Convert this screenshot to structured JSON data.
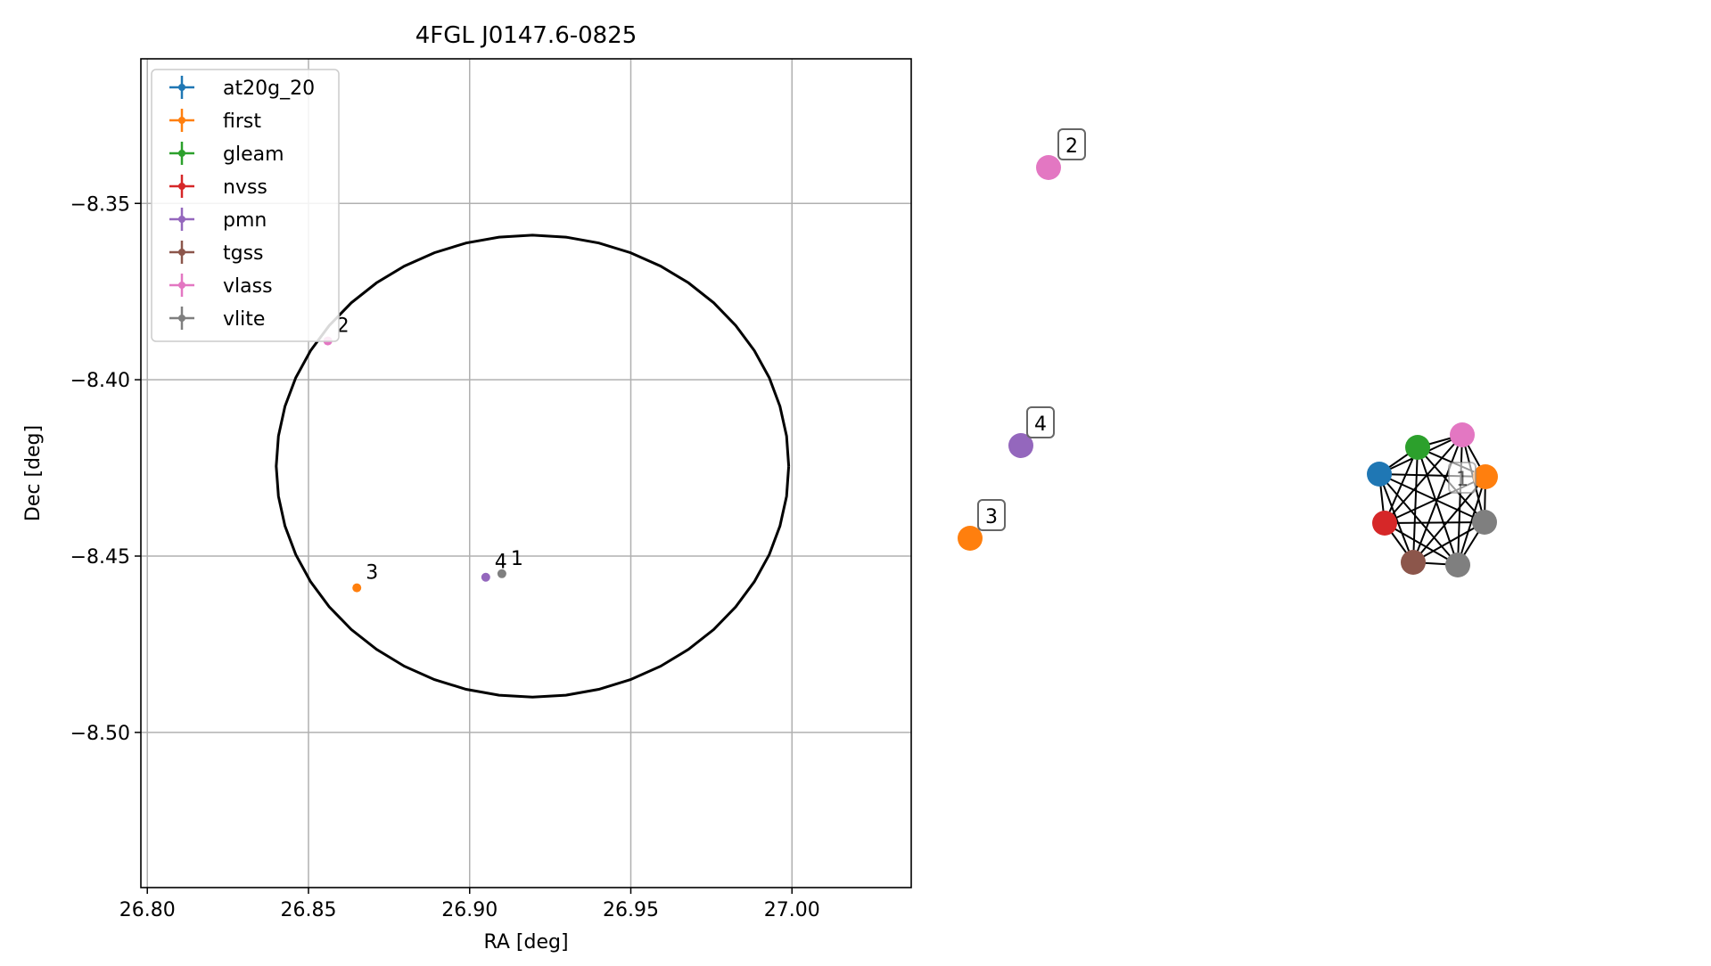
{
  "chart_data": [
    {
      "type": "scatter",
      "title": "4FGL J0147.6-0825",
      "xlabel": "RA [deg]",
      "ylabel": "Dec [deg]",
      "xlim": [
        26.798,
        27.037
      ],
      "ylim": [
        -8.544,
        -8.309
      ],
      "x_ticks": [
        26.8,
        26.85,
        26.9,
        26.95,
        27.0
      ],
      "x_tick_labels": [
        "26.80",
        "26.85",
        "26.90",
        "26.95",
        "27.00"
      ],
      "y_ticks": [
        -8.35,
        -8.4,
        -8.45,
        -8.5
      ],
      "y_tick_labels": [
        "−8.35",
        "−8.40",
        "−8.45",
        "−8.50"
      ],
      "grid": true,
      "legend_position": "top-left",
      "legend": [
        {
          "name": "at20g_20",
          "color": "#1f77b4"
        },
        {
          "name": "first",
          "color": "#ff7f0e"
        },
        {
          "name": "gleam",
          "color": "#2ca02c"
        },
        {
          "name": "nvss",
          "color": "#d62728"
        },
        {
          "name": "pmn",
          "color": "#9467bd"
        },
        {
          "name": "tgss",
          "color": "#8c564b"
        },
        {
          "name": "vlass",
          "color": "#e377c2"
        },
        {
          "name": "vlite",
          "color": "#7f7f7f"
        }
      ],
      "points": [
        {
          "label": "2",
          "x": 26.856,
          "y": -8.389,
          "color": "#e377c2"
        },
        {
          "label": "3",
          "x": 26.865,
          "y": -8.459,
          "color": "#ff7f0e"
        },
        {
          "label": "4",
          "x": 26.905,
          "y": -8.456,
          "color": "#9467bd"
        },
        {
          "label": "1",
          "x": 26.91,
          "y": -8.455,
          "color": "#7f7f7f"
        }
      ],
      "ellipse": {
        "center_x": 26.9195,
        "center_y": -8.4245,
        "semi_x": 0.0795,
        "semi_y": 0.0655,
        "color": "#000000"
      }
    },
    {
      "type": "network",
      "nodes": [
        {
          "id": "vlass-2",
          "color": "#e377c2",
          "label": "2"
        },
        {
          "id": "pmn-4",
          "color": "#9467bd",
          "label": "4"
        },
        {
          "id": "first-3",
          "color": "#ff7f0e",
          "label": "3"
        },
        {
          "id": "c-vlass",
          "color": "#e377c2",
          "label": ""
        },
        {
          "id": "c-gleam",
          "color": "#2ca02c",
          "label": ""
        },
        {
          "id": "c-at20g",
          "color": "#1f77b4",
          "label": ""
        },
        {
          "id": "c-first",
          "color": "#ff7f0e",
          "label": ""
        },
        {
          "id": "c-vlite1",
          "color": "#7f7f7f",
          "label": ""
        },
        {
          "id": "c-nvss",
          "color": "#d62728",
          "label": ""
        },
        {
          "id": "c-tgss",
          "color": "#8c564b",
          "label": ""
        },
        {
          "id": "c-vlite2",
          "color": "#7f7f7f",
          "label": ""
        }
      ],
      "cluster_label": "1",
      "cluster_edges": "complete"
    }
  ]
}
